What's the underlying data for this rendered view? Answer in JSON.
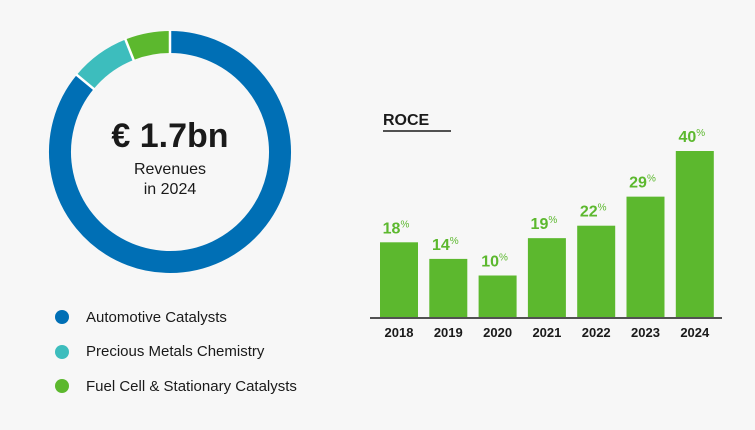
{
  "donut": {
    "headline": "€ 1.7bn",
    "subline1": "Revenues",
    "subline2": "in 2024"
  },
  "legend": [
    {
      "label": "Automotive Catalysts",
      "color": "#006fb5"
    },
    {
      "label": "Precious Metals Chemistry",
      "color": "#3dbdbd"
    },
    {
      "label": "Fuel Cell & Stationary Catalysts",
      "color": "#5cb82e"
    }
  ],
  "chart_data": [
    {
      "type": "pie",
      "style": "donut",
      "slices": [
        {
          "label": "Automotive Catalysts",
          "value": 86,
          "color": "#006fb5"
        },
        {
          "label": "Precious Metals Chemistry",
          "value": 8,
          "color": "#3dbdbd"
        },
        {
          "label": "Fuel Cell & Stationary Catalysts",
          "value": 6,
          "color": "#5cb82e"
        }
      ]
    },
    {
      "type": "bar",
      "title": "ROCE",
      "categories": [
        "2018",
        "2019",
        "2020",
        "2021",
        "2022",
        "2023",
        "2024"
      ],
      "values": [
        18,
        14,
        10,
        19,
        22,
        29,
        40
      ],
      "unit": "%",
      "ylim": [
        0,
        40
      ],
      "bar_color": "#5cb82e",
      "label_color": "#5cb82e",
      "grid": false
    }
  ]
}
